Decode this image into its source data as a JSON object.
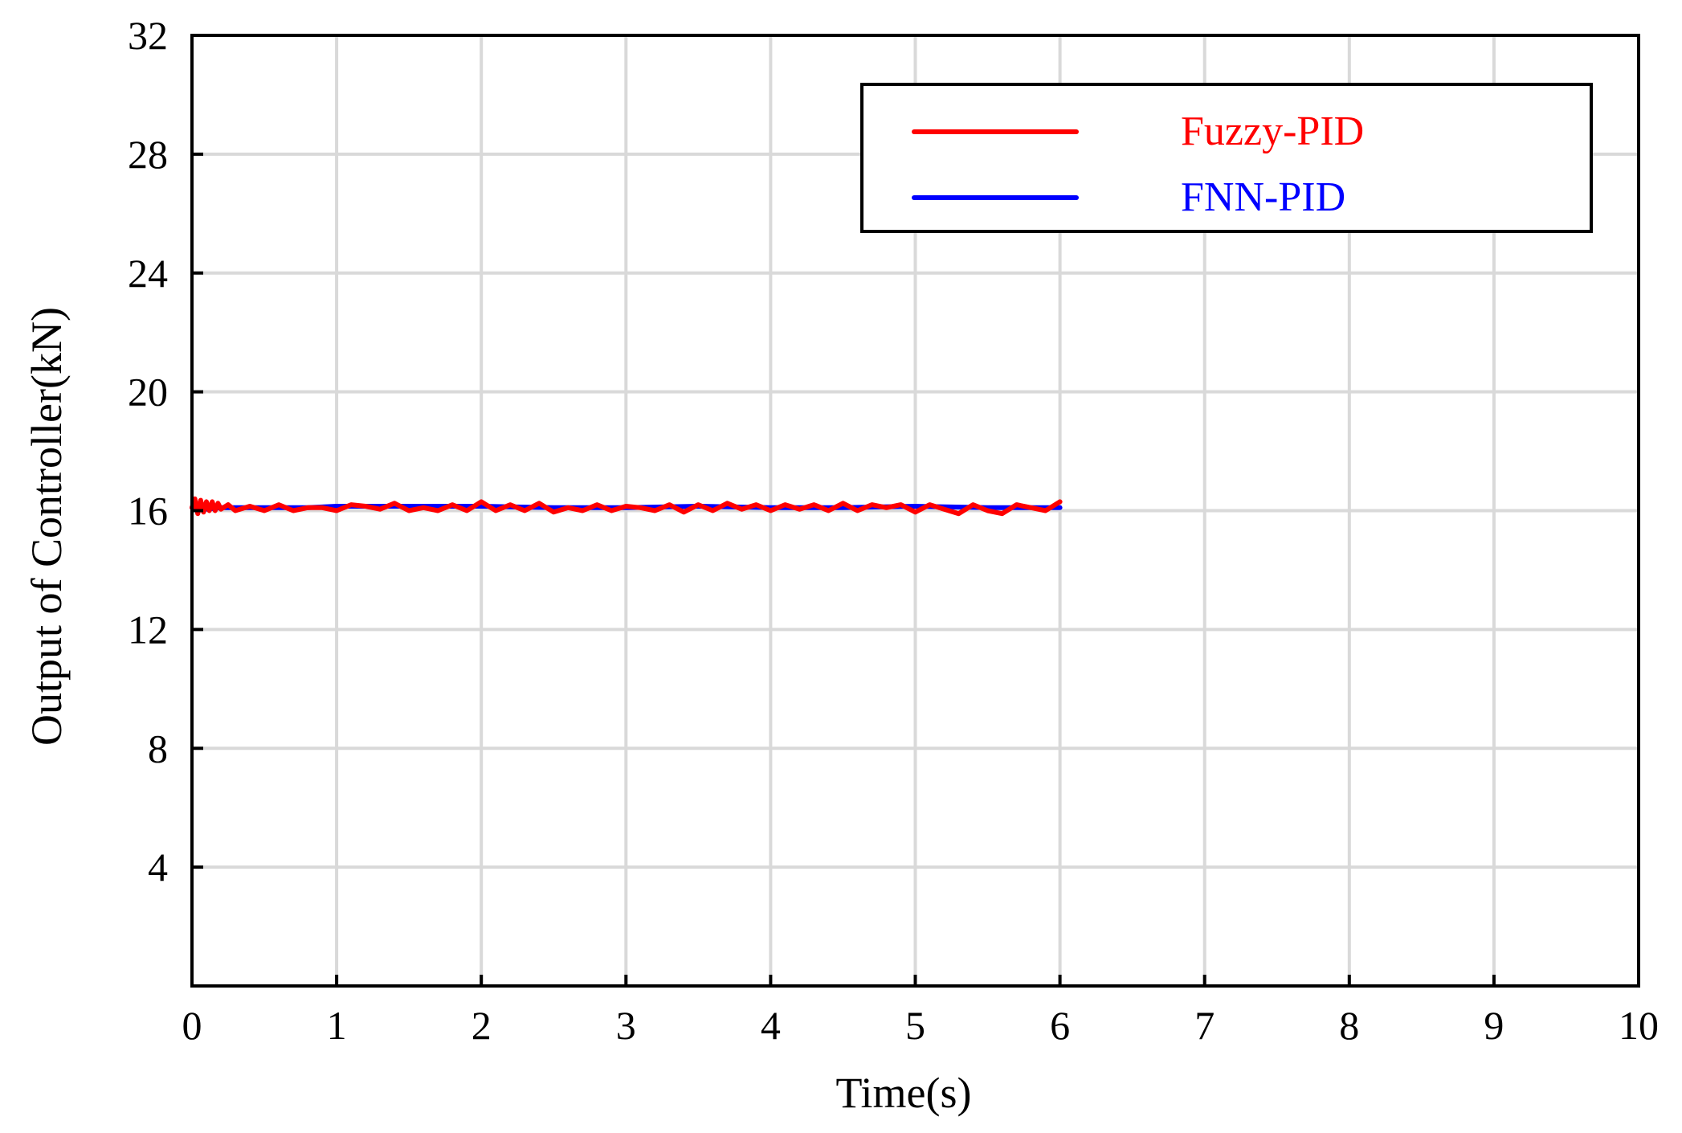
{
  "chart_data": {
    "type": "line",
    "xlabel": "Time(s)",
    "ylabel": "Output of Controller(kN)",
    "xlim": [
      0,
      10
    ],
    "ylim": [
      0,
      32
    ],
    "xticks": [
      0,
      1,
      2,
      3,
      4,
      5,
      6,
      7,
      8,
      9,
      10
    ],
    "yticks": [
      4,
      8,
      12,
      16,
      20,
      24,
      28,
      32
    ],
    "xtick_labels": [
      "0",
      "1",
      "2",
      "3",
      "4",
      "5",
      "6",
      "7",
      "8",
      "9",
      "10"
    ],
    "ytick_labels": [
      "4",
      "8",
      "12",
      "16",
      "20",
      "24",
      "28",
      "32"
    ],
    "grid": true,
    "legend_position": "top-right",
    "series": [
      {
        "name": "Fuzzy-PID",
        "color": "#ff0000",
        "x": [
          0,
          0.02,
          0.04,
          0.06,
          0.08,
          0.1,
          0.12,
          0.14,
          0.16,
          0.18,
          0.2,
          0.25,
          0.3,
          0.4,
          0.5,
          0.6,
          0.7,
          0.8,
          0.9,
          1.0,
          1.1,
          1.2,
          1.3,
          1.4,
          1.5,
          1.6,
          1.7,
          1.8,
          1.9,
          2.0,
          2.1,
          2.2,
          2.3,
          2.4,
          2.5,
          2.6,
          2.7,
          2.8,
          2.9,
          3.0,
          3.1,
          3.2,
          3.3,
          3.4,
          3.5,
          3.6,
          3.7,
          3.8,
          3.9,
          4.0,
          4.1,
          4.2,
          4.3,
          4.4,
          4.5,
          4.6,
          4.7,
          4.8,
          4.9,
          5.0,
          5.1,
          5.2,
          5.3,
          5.4,
          5.5,
          5.6,
          5.7,
          5.8,
          5.9,
          6.0
        ],
        "y": [
          16.1,
          16.4,
          15.9,
          16.35,
          15.95,
          16.3,
          16.0,
          16.3,
          16.0,
          16.25,
          16.05,
          16.2,
          16.0,
          16.15,
          16.0,
          16.2,
          16.0,
          16.1,
          16.1,
          16.0,
          16.2,
          16.15,
          16.05,
          16.25,
          16.0,
          16.1,
          16.0,
          16.2,
          16.0,
          16.3,
          16.0,
          16.2,
          16.0,
          16.25,
          15.95,
          16.1,
          16.0,
          16.2,
          16.0,
          16.15,
          16.1,
          16.0,
          16.2,
          15.95,
          16.2,
          16.0,
          16.25,
          16.05,
          16.2,
          16.0,
          16.2,
          16.05,
          16.2,
          16.0,
          16.25,
          16.0,
          16.2,
          16.1,
          16.2,
          15.95,
          16.2,
          16.05,
          15.9,
          16.2,
          16.0,
          15.9,
          16.2,
          16.1,
          16.0,
          16.3
        ]
      },
      {
        "name": "FNN-PID",
        "color": "#0000ff",
        "x": [
          0,
          0.1,
          0.2,
          0.4,
          0.6,
          0.8,
          1.0,
          1.5,
          2.0,
          2.5,
          3.0,
          3.5,
          4.0,
          4.5,
          5.0,
          5.5,
          6.0
        ],
        "y": [
          16.1,
          16.05,
          16.1,
          16.1,
          16.1,
          16.1,
          16.15,
          16.15,
          16.15,
          16.1,
          16.1,
          16.15,
          16.1,
          16.1,
          16.15,
          16.1,
          16.1
        ]
      }
    ]
  }
}
